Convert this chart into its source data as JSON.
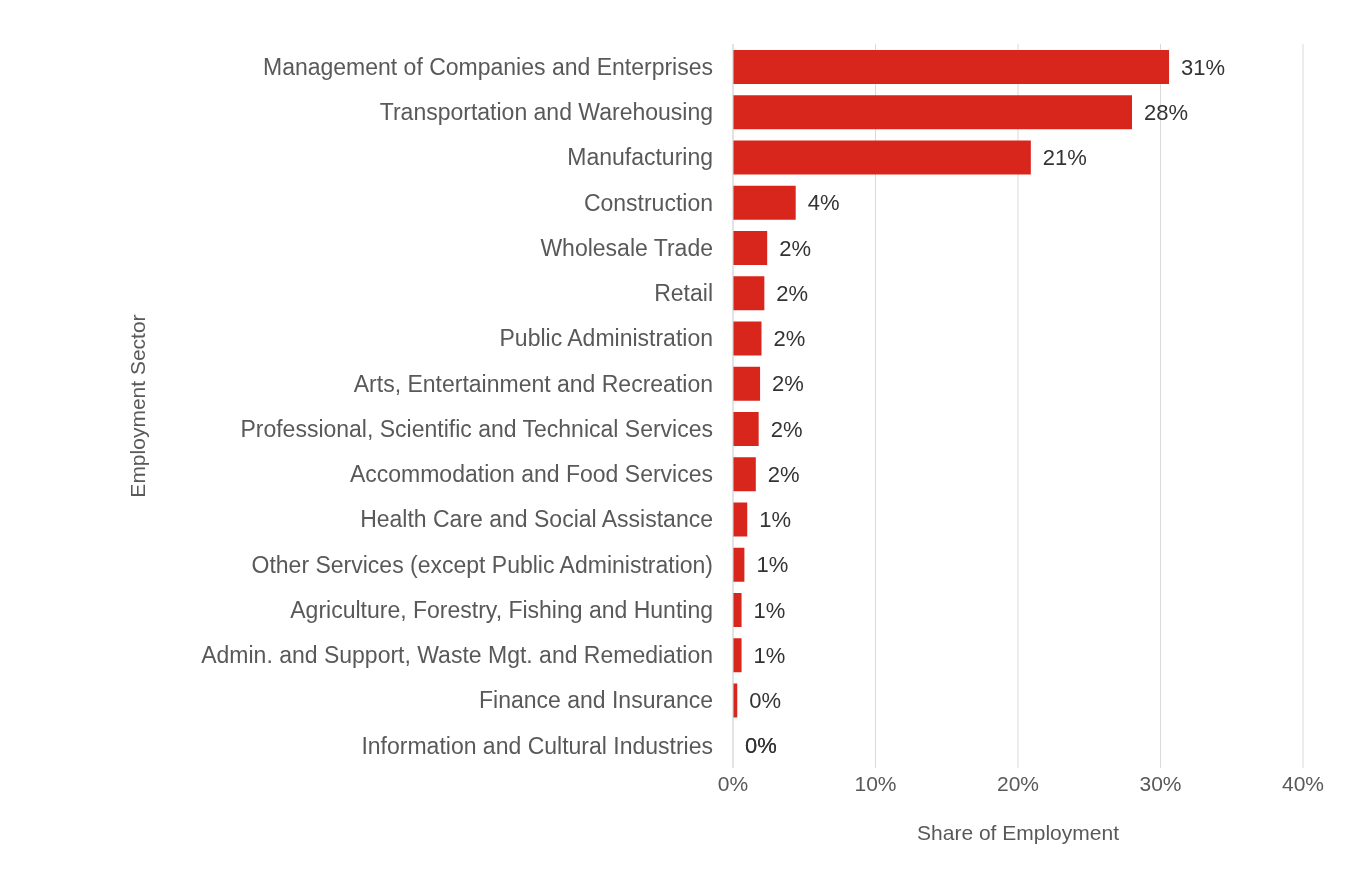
{
  "chart_data": {
    "type": "bar",
    "orientation": "horizontal",
    "xlabel": "Share of Employment",
    "ylabel": "Employment Sector",
    "categories": [
      "Management of Companies and Enterprises",
      "Transportation and Warehousing",
      "Manufacturing",
      "Construction",
      "Wholesale Trade",
      "Retail",
      "Public Administration",
      "Arts, Entertainment and Recreation",
      "Professional, Scientific and Technical Services",
      "Accommodation and Food Services",
      "Health Care and Social Assistance",
      "Other Services (except Public Administration)",
      "Agriculture, Forestry, Fishing and Hunting",
      "Admin. and Support, Waste Mgt. and Remediation",
      "Finance and Insurance",
      "Information and Cultural Industries"
    ],
    "values": [
      30.6,
      28.0,
      20.9,
      4.4,
      2.4,
      2.2,
      2.0,
      1.9,
      1.8,
      1.6,
      1.0,
      0.8,
      0.6,
      0.6,
      0.3,
      0.0
    ],
    "value_labels": [
      "31%",
      "28%",
      "21%",
      "4%",
      "2%",
      "2%",
      "2%",
      "2%",
      "2%",
      "2%",
      "1%",
      "1%",
      "1%",
      "1%",
      "0%",
      "0%"
    ],
    "color": "#d9261c",
    "xlim": [
      0,
      40
    ],
    "xticks": [
      {
        "value": 0,
        "label": "0%"
      },
      {
        "value": 10,
        "label": "10%"
      },
      {
        "value": 20,
        "label": "20%"
      },
      {
        "value": 30,
        "label": "30%"
      },
      {
        "value": 40,
        "label": "40%"
      }
    ],
    "grid": "x"
  }
}
